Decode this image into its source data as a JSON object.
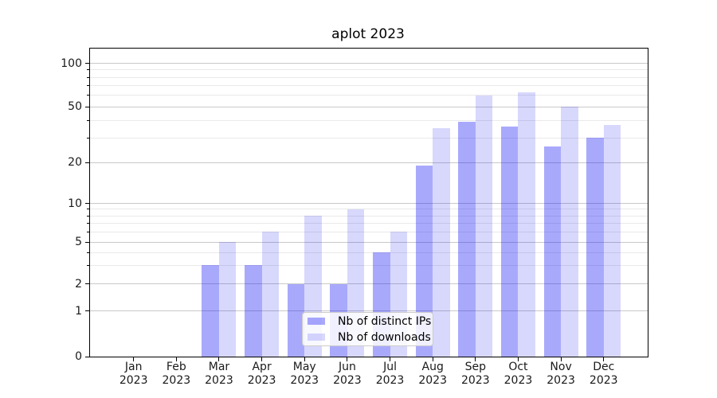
{
  "title": "aplot 2023",
  "chart_data": {
    "type": "bar",
    "title": "aplot 2023",
    "categories": [
      "Jan 2023",
      "Feb 2023",
      "Mar 2023",
      "Apr 2023",
      "May 2023",
      "Jun 2023",
      "Jul 2023",
      "Aug 2023",
      "Sep 2023",
      "Oct 2023",
      "Nov 2023",
      "Dec 2023"
    ],
    "series": [
      {
        "name": "Nb of distinct IPs",
        "color": "rgba(10,10,245,0.35)",
        "values": [
          0,
          0,
          3,
          3,
          2,
          2,
          4,
          19,
          39,
          36,
          26,
          30
        ]
      },
      {
        "name": "Nb of downloads",
        "color": "rgba(10,10,245,0.16)",
        "values": [
          0,
          0,
          5,
          6,
          8,
          9,
          6,
          35,
          60,
          63,
          50,
          37
        ]
      }
    ],
    "xlabel": "",
    "ylabel": "",
    "yscale": "symlog",
    "ylim": [
      0,
      127
    ],
    "y_ticks_major": [
      0,
      1,
      2,
      5,
      10,
      20,
      50,
      100
    ],
    "y_ticks_minor": [
      3,
      4,
      6,
      7,
      8,
      9,
      30,
      40,
      60,
      70,
      80,
      90
    ],
    "grid": "both",
    "legend_position": "lower center"
  },
  "colors": {
    "bar_distinct_ips": "rgba(10,10,245,0.35)",
    "bar_downloads": "rgba(10,10,245,0.16)",
    "grid_major": "#c9c9c9",
    "grid_minor": "#e9e9e9",
    "spine": "#000000",
    "background": "#ffffff"
  }
}
